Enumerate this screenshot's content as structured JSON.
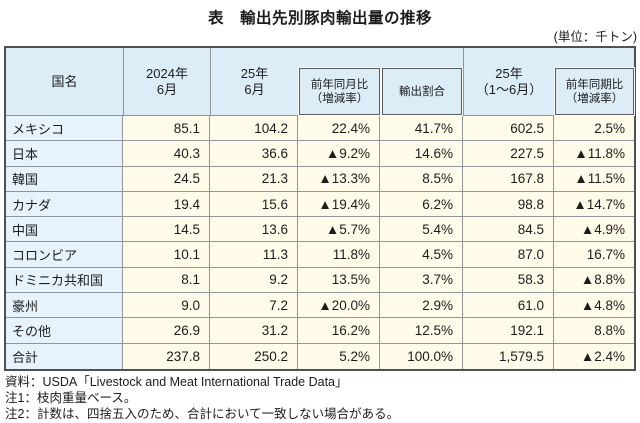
{
  "title": "表　輸出先別豚肉輸出量の推移",
  "unit_label": "(単位：千トン)",
  "colors": {
    "header_bg": "#ddedf8",
    "country_col_bg": "#e6f2fc",
    "value_col_bg": "#fffbe8",
    "grid_line": "#8e959b",
    "outer_border": "#4d5257"
  },
  "table": {
    "header": {
      "country": "国名",
      "col_2024_jun": [
        "2024年",
        "6月"
      ],
      "col_2025_jun": [
        "25年",
        "6月"
      ],
      "col_yoy_month": [
        "前年同月比",
        "（増減率）"
      ],
      "col_share": "輸出割合",
      "col_2025_jan_jun": [
        "25年",
        "（1～6月）"
      ],
      "col_yoy_period": [
        "前年同期比",
        "（増減率）"
      ]
    },
    "rows": [
      {
        "country": "メキシコ",
        "values": [
          "85.1",
          "104.2",
          "22.4%",
          "41.7%",
          "602.5",
          "2.5%"
        ]
      },
      {
        "country": "日本",
        "values": [
          "40.3",
          "36.6",
          "▲9.2%",
          "14.6%",
          "227.5",
          "▲11.8%"
        ]
      },
      {
        "country": "韓国",
        "values": [
          "24.5",
          "21.3",
          "▲13.3%",
          "8.5%",
          "167.8",
          "▲11.5%"
        ]
      },
      {
        "country": "カナダ",
        "values": [
          "19.4",
          "15.6",
          "▲19.4%",
          "6.2%",
          "98.8",
          "▲14.7%"
        ]
      },
      {
        "country": "中国",
        "values": [
          "14.5",
          "13.6",
          "▲5.7%",
          "5.4%",
          "84.5",
          "▲4.9%"
        ]
      },
      {
        "country": "コロンビア",
        "values": [
          "10.1",
          "11.3",
          "11.8%",
          "4.5%",
          "87.0",
          "16.7%"
        ]
      },
      {
        "country": "ドミニカ共和国",
        "values": [
          "8.1",
          "9.2",
          "13.5%",
          "3.7%",
          "58.3",
          "▲8.8%"
        ]
      },
      {
        "country": "豪州",
        "values": [
          "9.0",
          "7.2",
          "▲20.0%",
          "2.9%",
          "61.0",
          "▲4.8%"
        ]
      },
      {
        "country": "その他",
        "values": [
          "26.9",
          "31.2",
          "16.2%",
          "12.5%",
          "192.1",
          "8.8%"
        ]
      },
      {
        "country": "合計",
        "values": [
          "237.8",
          "250.2",
          "5.2%",
          "100.0%",
          "1,579.5",
          "▲2.4%"
        ]
      }
    ]
  },
  "footnotes": [
    "資料：USDA「Livestock and Meat International Trade Data」",
    "注1：枝肉重量ベース。",
    "注2：計数は、四捨五入のため、合計において一致しない場合がある。"
  ]
}
